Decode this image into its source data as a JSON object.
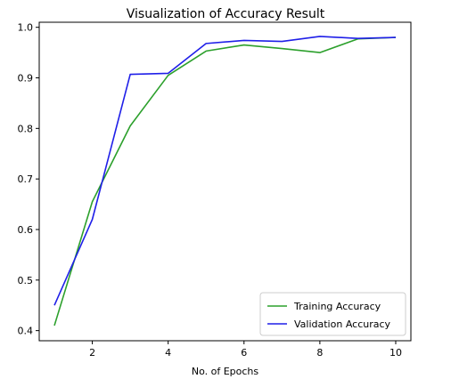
{
  "chart_data": {
    "type": "line",
    "title": "Visualization of Accuracy Result",
    "xlabel": "No. of Epochs",
    "ylabel": "",
    "x": [
      1,
      2,
      3,
      4,
      5,
      6,
      7,
      8,
      9,
      10
    ],
    "xlim": [
      0.6,
      10.4
    ],
    "ylim": [
      0.38,
      1.01
    ],
    "xticks": [
      2,
      4,
      6,
      8,
      10
    ],
    "yticks": [
      0.4,
      0.5,
      0.6,
      0.7,
      0.8,
      0.9,
      1.0
    ],
    "ytick_labels": [
      "0.4",
      "0.5",
      "0.6",
      "0.7",
      "0.8",
      "0.9",
      "1.0"
    ],
    "grid": false,
    "legend_position": "lower-right",
    "series": [
      {
        "name": "Training Accuracy",
        "color": "#2ca02c",
        "values": [
          0.41,
          0.655,
          0.805,
          0.905,
          0.953,
          0.965,
          0.958,
          0.95,
          0.977,
          0.98
        ]
      },
      {
        "name": "Validation Accuracy",
        "color": "#1f1fe8",
        "values": [
          0.45,
          0.62,
          0.907,
          0.909,
          0.968,
          0.974,
          0.972,
          0.982,
          0.978,
          0.98
        ]
      }
    ]
  }
}
